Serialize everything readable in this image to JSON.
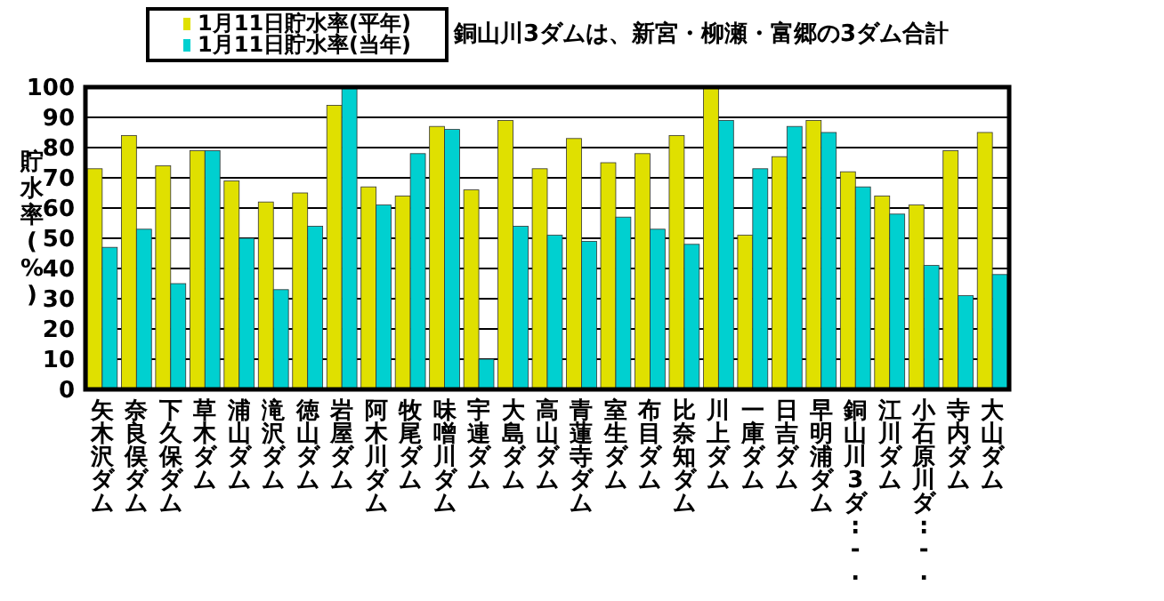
{
  "chart_data": {
    "type": "bar",
    "ylabel": "貯水率(%)",
    "annotations": [
      "銅山川3ダムは、新宮・柳瀬・富郷の3ダム合計"
    ],
    "categories": [
      "矢木沢ダム",
      "奈良俣ダム",
      "下久保ダム",
      "草木ダム",
      "浦山ダム",
      "滝沢ダム",
      "徳山ダム",
      "岩屋ダム",
      "阿木川ダム",
      "牧尾ダム",
      "味噌川ダム",
      "宇連ダム",
      "大島ダム",
      "高山ダム",
      "青蓮寺ダム",
      "室生ダム",
      "布目ダム",
      "比奈知ダム",
      "川上ダム",
      "一庫ダム",
      "日吉ダム",
      "早明浦ダム",
      "銅山川3ダ:-.",
      "江川ダム",
      "小石原川ダ:-.",
      "寺内ダム",
      "大山ダム"
    ],
    "series": [
      {
        "name": "1月11日貯水率(平年)",
        "color": "#e0e000",
        "values": [
          73,
          84,
          74,
          79,
          69,
          62,
          65,
          94,
          67,
          64,
          87,
          66,
          89,
          73,
          83,
          75,
          78,
          84,
          100,
          51,
          77,
          89,
          72,
          64,
          61,
          79,
          85
        ]
      },
      {
        "name": "1月11日貯水率(当年)",
        "color": "#00d0d0",
        "values": [
          47,
          53,
          35,
          79,
          50,
          33,
          54,
          100,
          61,
          78,
          86,
          10,
          54,
          51,
          49,
          57,
          53,
          48,
          89,
          73,
          87,
          85,
          67,
          58,
          41,
          31,
          38
        ]
      }
    ],
    "ylim": [
      0,
      100
    ],
    "yticks": [
      0,
      10,
      20,
      30,
      40,
      50,
      60,
      70,
      80,
      90,
      100
    ],
    "grid": "y",
    "legend": "top left"
  }
}
